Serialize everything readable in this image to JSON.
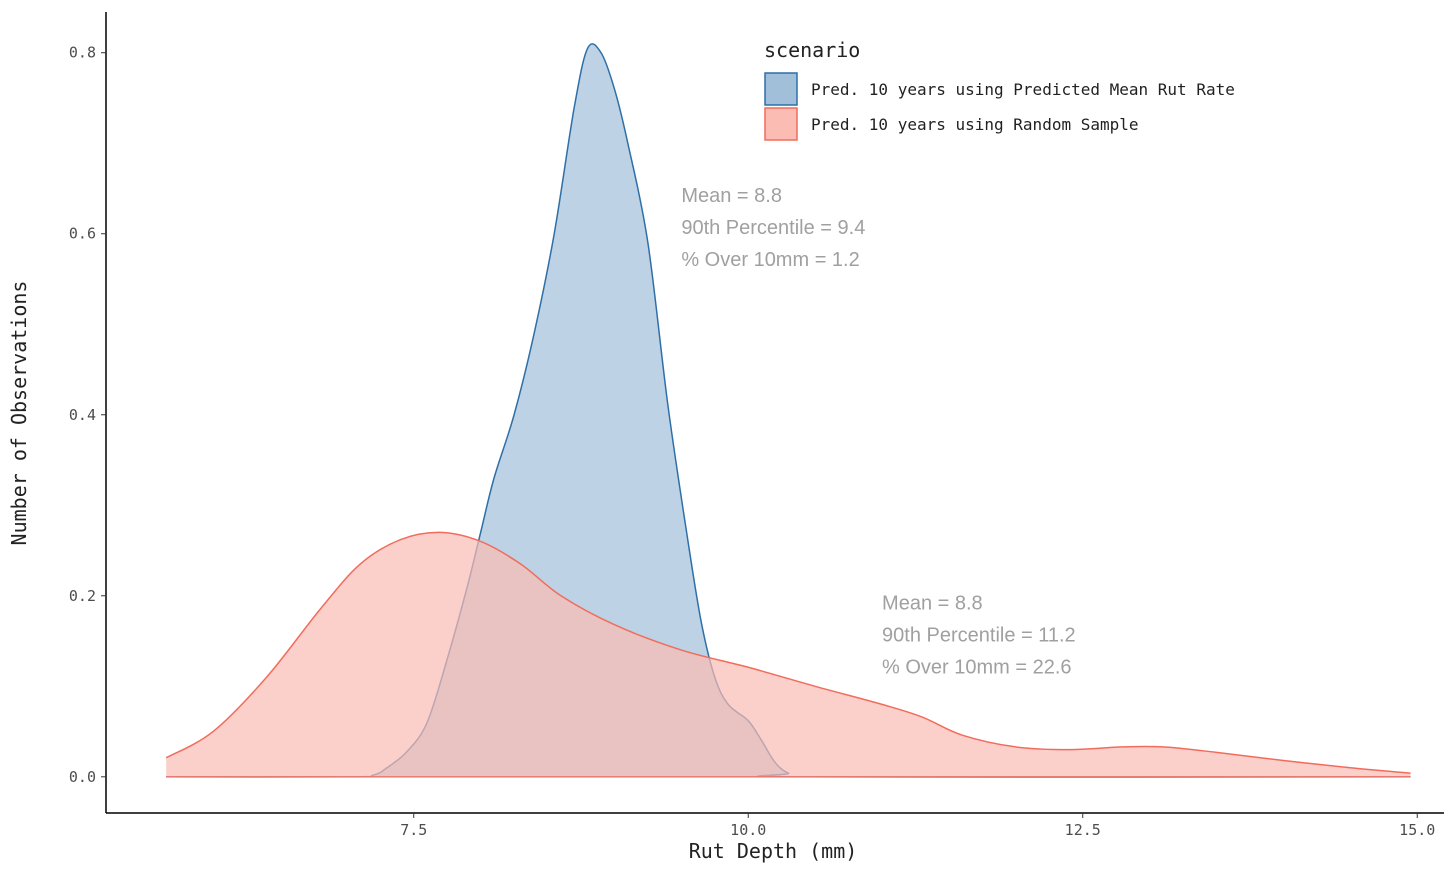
{
  "chart_data": {
    "type": "area",
    "xlabel": "Rut Depth (mm)",
    "ylabel": "Number of Observations",
    "xlim": [
      5.2,
      15.2
    ],
    "ylim": [
      -0.04,
      0.845
    ],
    "x_ticks": [
      {
        "value": 7.5,
        "label": "7.5"
      },
      {
        "value": 10.0,
        "label": "10.0"
      },
      {
        "value": 12.5,
        "label": "12.5"
      },
      {
        "value": 15.0,
        "label": "15.0"
      }
    ],
    "y_ticks": [
      {
        "value": 0.0,
        "label": "0.0"
      },
      {
        "value": 0.2,
        "label": "0.2"
      },
      {
        "value": 0.4,
        "label": "0.4"
      },
      {
        "value": 0.6,
        "label": "0.6"
      },
      {
        "value": 0.8,
        "label": "0.8"
      }
    ],
    "grid": false,
    "legend": {
      "title": "scenario",
      "position": "top-right"
    },
    "series": [
      {
        "name": "Pred. 10 years using Predicted Mean Rut Rate",
        "fill": "#a1bfd9",
        "stroke": "#2e6fa8",
        "points": [
          [
            5.65,
            0.0
          ],
          [
            7.0,
            0.0
          ],
          [
            7.2,
            0.002
          ],
          [
            7.3,
            0.01
          ],
          [
            7.45,
            0.028
          ],
          [
            7.6,
            0.06
          ],
          [
            7.75,
            0.13
          ],
          [
            7.9,
            0.21
          ],
          [
            8.0,
            0.27
          ],
          [
            8.1,
            0.33
          ],
          [
            8.25,
            0.4
          ],
          [
            8.4,
            0.49
          ],
          [
            8.55,
            0.6
          ],
          [
            8.7,
            0.74
          ],
          [
            8.8,
            0.805
          ],
          [
            8.9,
            0.8
          ],
          [
            9.0,
            0.76
          ],
          [
            9.1,
            0.7
          ],
          [
            9.25,
            0.59
          ],
          [
            9.4,
            0.41
          ],
          [
            9.55,
            0.26
          ],
          [
            9.65,
            0.17
          ],
          [
            9.75,
            0.11
          ],
          [
            9.85,
            0.08
          ],
          [
            10.0,
            0.062
          ],
          [
            10.1,
            0.04
          ],
          [
            10.2,
            0.016
          ],
          [
            10.3,
            0.004
          ],
          [
            10.45,
            0.0
          ],
          [
            14.95,
            0.0
          ]
        ]
      },
      {
        "name": "Pred. 10 years using Random Sample",
        "fill": "#fbbcb4",
        "stroke": "#f26c5c",
        "points": [
          [
            5.65,
            0.021
          ],
          [
            6.0,
            0.05
          ],
          [
            6.4,
            0.11
          ],
          [
            6.8,
            0.185
          ],
          [
            7.1,
            0.235
          ],
          [
            7.4,
            0.262
          ],
          [
            7.7,
            0.27
          ],
          [
            8.0,
            0.26
          ],
          [
            8.3,
            0.235
          ],
          [
            8.6,
            0.2
          ],
          [
            9.0,
            0.168
          ],
          [
            9.5,
            0.14
          ],
          [
            10.0,
            0.121
          ],
          [
            10.5,
            0.1
          ],
          [
            11.0,
            0.08
          ],
          [
            11.3,
            0.066
          ],
          [
            11.6,
            0.046
          ],
          [
            12.0,
            0.033
          ],
          [
            12.4,
            0.03
          ],
          [
            12.8,
            0.033
          ],
          [
            13.1,
            0.033
          ],
          [
            13.5,
            0.027
          ],
          [
            14.0,
            0.018
          ],
          [
            14.5,
            0.01
          ],
          [
            14.95,
            0.004
          ]
        ]
      }
    ],
    "annotations": [
      {
        "x": 9.5,
        "y": 0.635,
        "lines": [
          "Mean = 8.8",
          "90th Percentile = 9.4",
          "% Over 10mm = 1.2"
        ]
      },
      {
        "x": 11.0,
        "y": 0.185,
        "lines": [
          "Mean = 8.8",
          "90th Percentile = 11.2",
          "% Over 10mm = 22.6"
        ]
      }
    ]
  }
}
